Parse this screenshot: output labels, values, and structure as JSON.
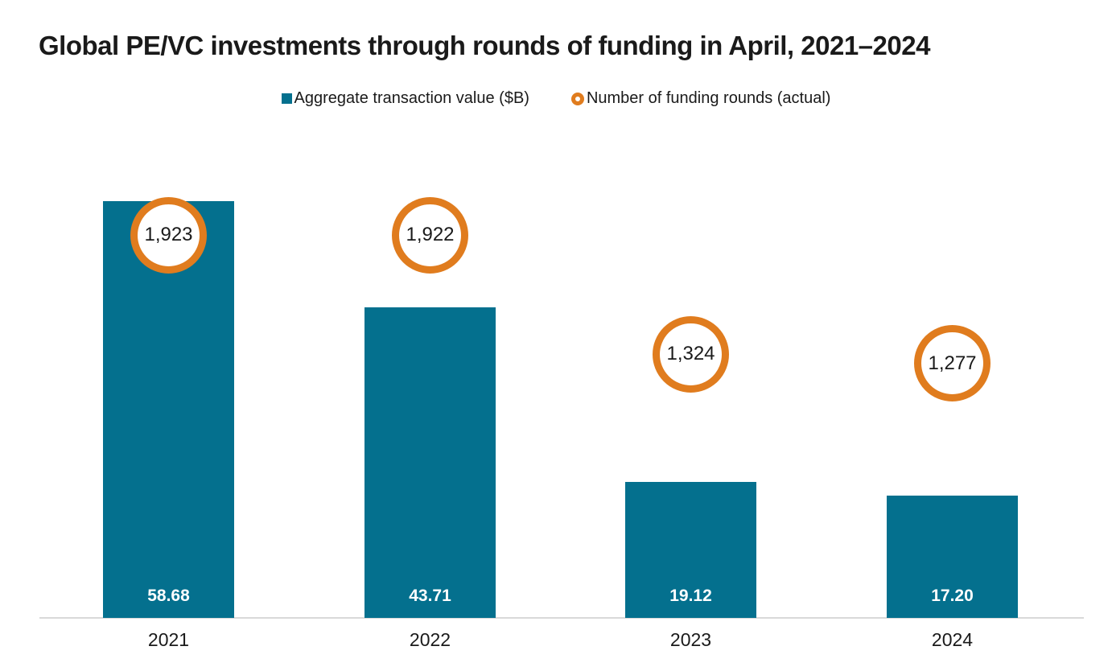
{
  "title": "Global PE/VC investments through rounds of funding in April, 2021–2024",
  "legend": {
    "bar_series_label": "Aggregate transaction value ($B)",
    "circle_series_label": "Number of funding rounds (actual)"
  },
  "colors": {
    "bar": "#04708e",
    "circle_ring": "#e07c1e",
    "axis_line": "#d9d9d9",
    "text": "#1a1a1a",
    "bar_value_text": "#ffffff"
  },
  "chart_data": {
    "type": "combo",
    "categories": [
      "2021",
      "2022",
      "2023",
      "2024"
    ],
    "series": [
      {
        "name": "Aggregate transaction value ($B)",
        "type": "bar",
        "color": "#04708e",
        "values": [
          58.68,
          43.71,
          19.12,
          17.2
        ],
        "value_labels": [
          "58.68",
          "43.71",
          "19.12",
          "17.20"
        ]
      },
      {
        "name": "Number of funding rounds (actual)",
        "type": "point",
        "marker": "ring-circle",
        "color": "#e07c1e",
        "values": [
          1923,
          1922,
          1324,
          1277
        ],
        "value_labels": [
          "1,923",
          "1,922",
          "1,324",
          "1,277"
        ]
      }
    ],
    "title": "Global PE/VC investments through rounds of funding in April, 2021–2024",
    "xlabel": "",
    "ylabel": "",
    "legend_position": "top",
    "grid": false,
    "y_axis_visible": false,
    "x_axis_line": true
  }
}
